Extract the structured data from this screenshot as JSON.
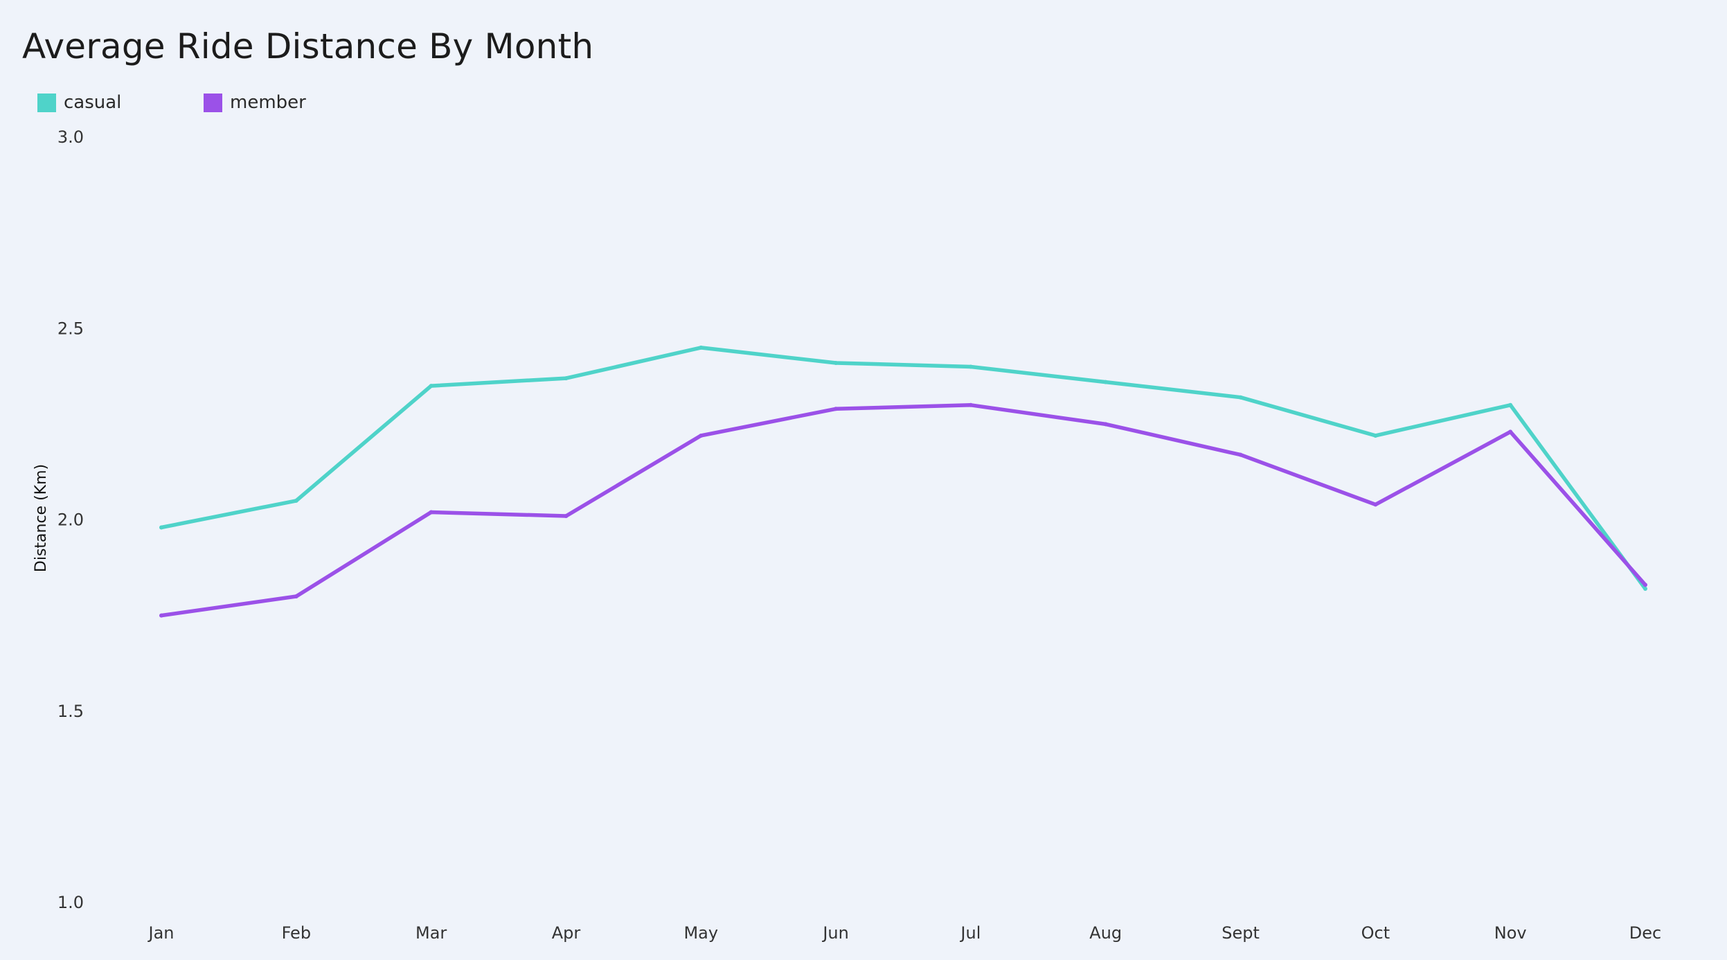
{
  "chart_data": {
    "type": "line",
    "title": "Average Ride Distance By Month",
    "xlabel": "",
    "ylabel": "Distance (Km)",
    "categories": [
      "Jan",
      "Feb",
      "Mar",
      "Apr",
      "May",
      "Jun",
      "Jul",
      "Aug",
      "Sept",
      "Oct",
      "Nov",
      "Dec"
    ],
    "ylim": [
      1.0,
      3.0
    ],
    "yticks": [
      "1.0",
      "1.5",
      "2.0",
      "2.5",
      "3.0"
    ],
    "grid": false,
    "legend_position": "top-left",
    "series": [
      {
        "name": "casual",
        "color": "#4fd3c9",
        "values": [
          1.98,
          2.05,
          2.35,
          2.37,
          2.45,
          2.41,
          2.4,
          2.36,
          2.32,
          2.22,
          2.3,
          1.82
        ]
      },
      {
        "name": "member",
        "color": "#9b51e8",
        "values": [
          1.75,
          1.8,
          2.02,
          2.01,
          2.22,
          2.29,
          2.3,
          2.25,
          2.17,
          2.04,
          2.23,
          1.83
        ]
      }
    ]
  }
}
